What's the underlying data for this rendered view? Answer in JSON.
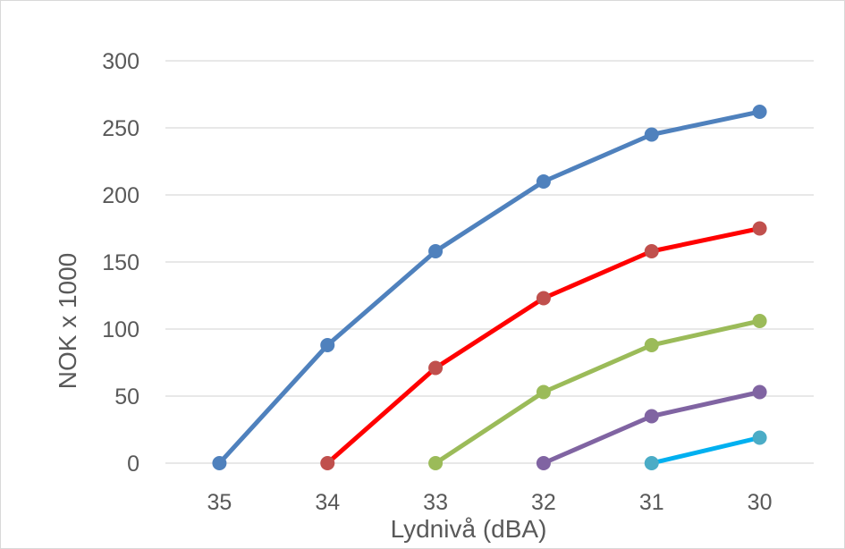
{
  "chart_data": {
    "type": "line",
    "title": "",
    "xlabel": "Lydnivå (dBA)",
    "ylabel": "NOK x 1000",
    "categories": [
      "35",
      "34",
      "33",
      "32",
      "31",
      "30"
    ],
    "ylim": [
      0,
      300
    ],
    "yticks": [
      "0",
      "50",
      "100",
      "150",
      "200",
      "250",
      "300"
    ],
    "grid": true,
    "legend": "none",
    "series": [
      {
        "line_color": "#4f81bd",
        "marker_color": "#4f81bd",
        "values": [
          0,
          88,
          158,
          210,
          245,
          262
        ]
      },
      {
        "line_color": "#ff0000",
        "marker_color": "#c0504d",
        "values": [
          null,
          0,
          71,
          123,
          158,
          175
        ]
      },
      {
        "line_color": "#9bbb59",
        "marker_color": "#9bbb59",
        "values": [
          null,
          null,
          0,
          53,
          88,
          106
        ]
      },
      {
        "line_color": "#8064a2",
        "marker_color": "#8064a2",
        "values": [
          null,
          null,
          null,
          0,
          35,
          53
        ]
      },
      {
        "line_color": "#00b0f0",
        "marker_color": "#4bacc6",
        "values": [
          null,
          null,
          null,
          null,
          0,
          19
        ]
      }
    ]
  }
}
